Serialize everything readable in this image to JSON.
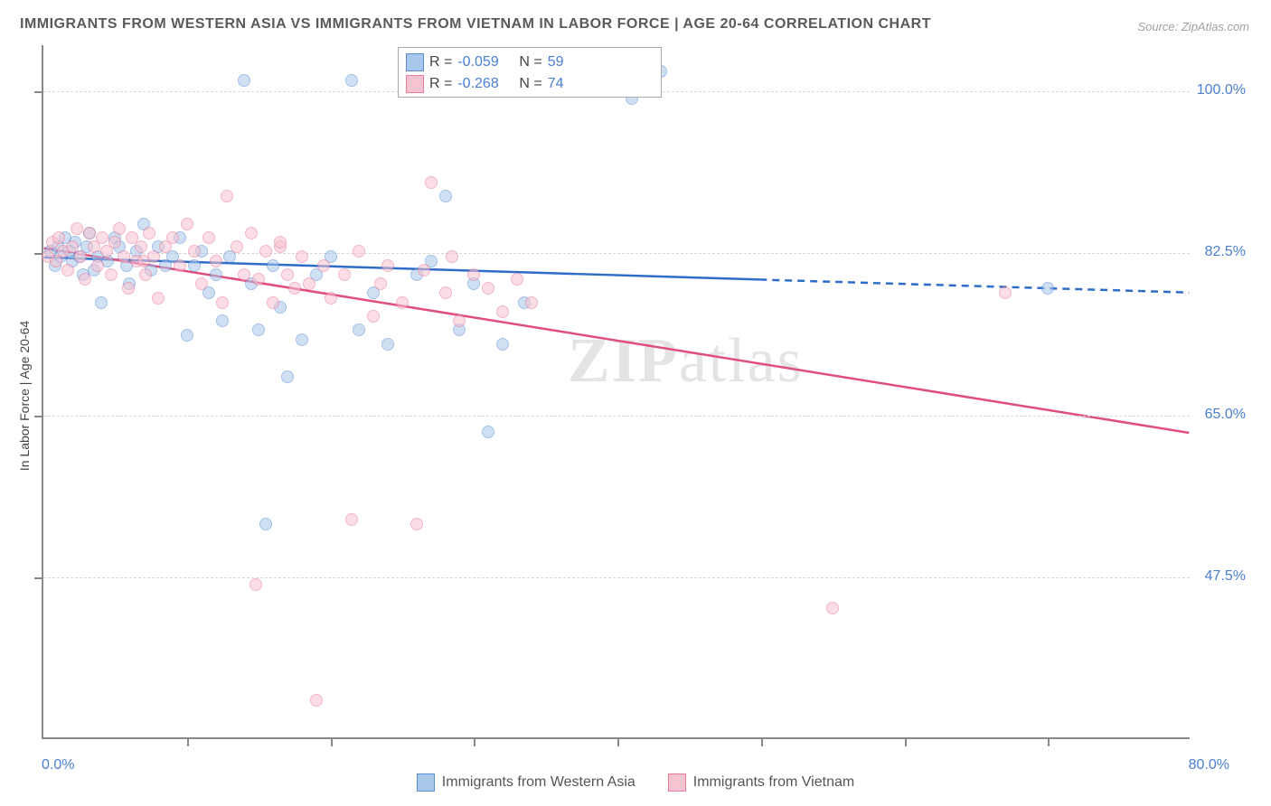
{
  "title": "IMMIGRANTS FROM WESTERN ASIA VS IMMIGRANTS FROM VIETNAM IN LABOR FORCE | AGE 20-64 CORRELATION CHART",
  "source": "Source: ZipAtlas.com",
  "watermark": {
    "bold": "ZIP",
    "light": "atlas"
  },
  "y_axis_label": "In Labor Force | Age 20-64",
  "chart": {
    "type": "scatter-correlation",
    "background_color": "#ffffff",
    "grid_color": "#d8d8d8",
    "axis_color": "#888888",
    "xlim": [
      0,
      80
    ],
    "ylim": [
      30,
      105
    ],
    "x_ticks": [
      10,
      20,
      30,
      40,
      50,
      60,
      70
    ],
    "y_tick_labels": [
      {
        "y": 100.0,
        "label": "100.0%"
      },
      {
        "y": 82.5,
        "label": "82.5%"
      },
      {
        "y": 65.0,
        "label": "65.0%"
      },
      {
        "y": 47.5,
        "label": "47.5%"
      }
    ],
    "x_left_label": "0.0%",
    "x_right_label": "80.0%",
    "marker_radius": 7,
    "marker_opacity": 0.55,
    "series": [
      {
        "name": "Immigrants from Western Asia",
        "fill": "#a9c7ea",
        "stroke": "#5a8dd4",
        "line_color": "#2d6cc9",
        "R": "-0.059",
        "N": "59",
        "trend": {
          "x1": 0,
          "y1": 82.0,
          "x2": 50,
          "y2": 79.6,
          "dash_x2": 80,
          "dash_y2": 78.2
        },
        "points": [
          [
            0.5,
            82.5
          ],
          [
            0.8,
            81.0
          ],
          [
            1.0,
            83.0
          ],
          [
            1.2,
            82.0
          ],
          [
            1.5,
            84.0
          ],
          [
            1.8,
            82.5
          ],
          [
            2.0,
            81.5
          ],
          [
            2.2,
            83.5
          ],
          [
            2.5,
            82.0
          ],
          [
            2.8,
            80.0
          ],
          [
            3.0,
            83.0
          ],
          [
            3.2,
            84.5
          ],
          [
            3.5,
            80.5
          ],
          [
            3.8,
            82.0
          ],
          [
            4.0,
            77.0
          ],
          [
            4.5,
            81.5
          ],
          [
            5.0,
            84.0
          ],
          [
            5.3,
            83.0
          ],
          [
            5.8,
            81.0
          ],
          [
            6.0,
            79.0
          ],
          [
            6.5,
            82.5
          ],
          [
            7.0,
            85.5
          ],
          [
            7.5,
            80.5
          ],
          [
            8.0,
            83.0
          ],
          [
            8.5,
            81.0
          ],
          [
            9.0,
            82.0
          ],
          [
            9.5,
            84.0
          ],
          [
            10.0,
            73.5
          ],
          [
            10.5,
            81.0
          ],
          [
            11.0,
            82.5
          ],
          [
            11.5,
            78.0
          ],
          [
            12.0,
            80.0
          ],
          [
            12.5,
            75.0
          ],
          [
            13.0,
            82.0
          ],
          [
            14.0,
            101.0
          ],
          [
            14.5,
            79.0
          ],
          [
            15.0,
            74.0
          ],
          [
            15.5,
            53.0
          ],
          [
            16.0,
            81.0
          ],
          [
            16.5,
            76.5
          ],
          [
            17.0,
            69.0
          ],
          [
            18.0,
            73.0
          ],
          [
            19.0,
            80.0
          ],
          [
            20.0,
            82.0
          ],
          [
            21.5,
            101.0
          ],
          [
            22.0,
            74.0
          ],
          [
            23.0,
            78.0
          ],
          [
            24.0,
            72.5
          ],
          [
            26.0,
            80.0
          ],
          [
            27.0,
            81.5
          ],
          [
            28.0,
            88.5
          ],
          [
            29.0,
            74.0
          ],
          [
            30.0,
            79.0
          ],
          [
            31.0,
            63.0
          ],
          [
            32.0,
            72.5
          ],
          [
            33.5,
            77.0
          ],
          [
            41.0,
            99.0
          ],
          [
            43.0,
            102.0
          ],
          [
            70.0,
            78.5
          ]
        ]
      },
      {
        "name": "Immigrants from Vietnam",
        "fill": "#f6c3d0",
        "stroke": "#e87a9b",
        "line_color": "#e04e7e",
        "R": "-0.268",
        "N": "74",
        "trend": {
          "x1": 0,
          "y1": 83.0,
          "x2": 80,
          "y2": 63.0
        },
        "points": [
          [
            0.3,
            82.0
          ],
          [
            0.6,
            83.5
          ],
          [
            0.9,
            81.5
          ],
          [
            1.1,
            84.0
          ],
          [
            1.4,
            82.5
          ],
          [
            1.7,
            80.5
          ],
          [
            2.0,
            83.0
          ],
          [
            2.3,
            85.0
          ],
          [
            2.6,
            82.0
          ],
          [
            2.9,
            79.5
          ],
          [
            3.2,
            84.5
          ],
          [
            3.5,
            83.0
          ],
          [
            3.8,
            81.0
          ],
          [
            4.1,
            84.0
          ],
          [
            4.4,
            82.5
          ],
          [
            4.7,
            80.0
          ],
          [
            5.0,
            83.5
          ],
          [
            5.3,
            85.0
          ],
          [
            5.6,
            82.0
          ],
          [
            5.9,
            78.5
          ],
          [
            6.2,
            84.0
          ],
          [
            6.5,
            81.5
          ],
          [
            6.8,
            83.0
          ],
          [
            7.1,
            80.0
          ],
          [
            7.4,
            84.5
          ],
          [
            7.7,
            82.0
          ],
          [
            8.0,
            77.5
          ],
          [
            8.5,
            83.0
          ],
          [
            9.0,
            84.0
          ],
          [
            9.5,
            81.0
          ],
          [
            10.0,
            85.5
          ],
          [
            10.5,
            82.5
          ],
          [
            11.0,
            79.0
          ],
          [
            11.5,
            84.0
          ],
          [
            12.0,
            81.5
          ],
          [
            12.5,
            77.0
          ],
          [
            12.8,
            88.5
          ],
          [
            13.5,
            83.0
          ],
          [
            14.0,
            80.0
          ],
          [
            14.5,
            84.5
          ],
          [
            14.8,
            46.5
          ],
          [
            15.0,
            79.5
          ],
          [
            15.5,
            82.5
          ],
          [
            16.0,
            77.0
          ],
          [
            16.5,
            83.0
          ],
          [
            17.0,
            80.0
          ],
          [
            17.5,
            78.5
          ],
          [
            18.0,
            82.0
          ],
          [
            18.5,
            79.0
          ],
          [
            19.0,
            34.0
          ],
          [
            19.5,
            81.0
          ],
          [
            20.0,
            77.5
          ],
          [
            21.0,
            80.0
          ],
          [
            21.5,
            53.5
          ],
          [
            22.0,
            82.5
          ],
          [
            23.0,
            75.5
          ],
          [
            23.5,
            79.0
          ],
          [
            24.0,
            81.0
          ],
          [
            25.0,
            77.0
          ],
          [
            26.0,
            53.0
          ],
          [
            26.5,
            80.5
          ],
          [
            27.0,
            90.0
          ],
          [
            28.0,
            78.0
          ],
          [
            28.5,
            82.0
          ],
          [
            29.0,
            75.0
          ],
          [
            30.0,
            80.0
          ],
          [
            31.0,
            78.5
          ],
          [
            32.0,
            76.0
          ],
          [
            33.0,
            79.5
          ],
          [
            34.0,
            77.0
          ],
          [
            55.0,
            44.0
          ],
          [
            67.0,
            78.0
          ],
          [
            16.5,
            83.5
          ],
          [
            7.0,
            81.5
          ]
        ]
      }
    ]
  },
  "legend_bottom": [
    {
      "label": "Immigrants from Western Asia",
      "fill": "#a9c7ea",
      "stroke": "#5a8dd4"
    },
    {
      "label": "Immigrants from Vietnam",
      "fill": "#f6c3d0",
      "stroke": "#e87a9b"
    }
  ]
}
